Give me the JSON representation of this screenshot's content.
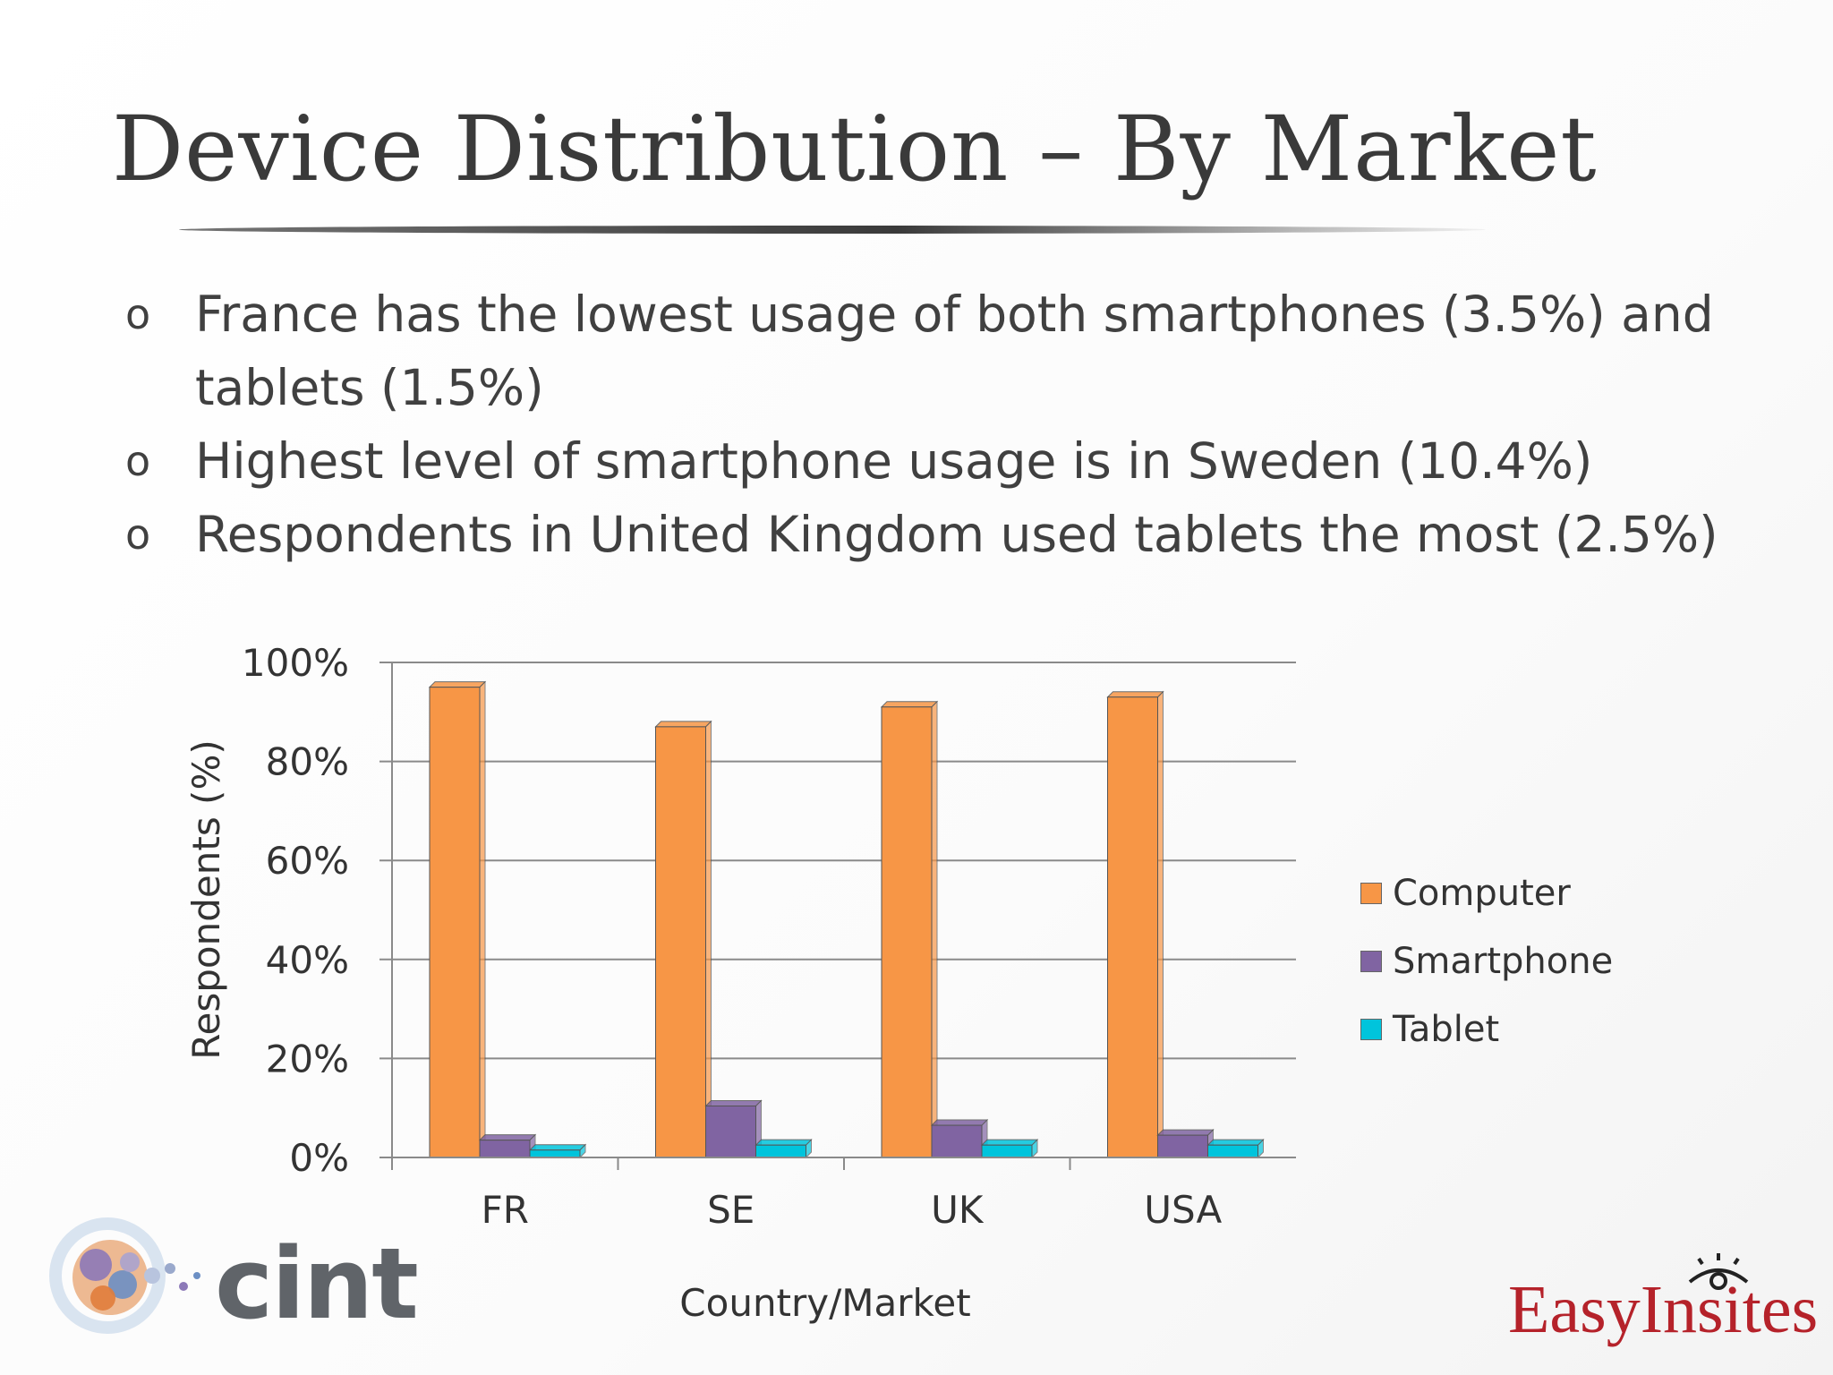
{
  "slide": {
    "title": "Device Distribution – By Market",
    "bullet_marker": "o",
    "bullets": [
      "France has the lowest usage of both smartphones (3.5%) and tablets (1.5%)",
      "Highest level of smartphone usage is in Sweden (10.4%)",
      "Respondents in United Kingdom used tablets the most (2.5%)"
    ]
  },
  "logos": {
    "left": "cint",
    "right": "EasyInsites"
  },
  "colors": {
    "computer": "#f79646",
    "smartphone": "#8064a2",
    "tablet": "#00c4dc",
    "title_rule": "#3a3a3a",
    "easyinsites_red": "#b5222a"
  },
  "chart_data": {
    "type": "bar",
    "categories": [
      "FR",
      "SE",
      "UK",
      "USA"
    ],
    "series": [
      {
        "name": "Computer",
        "values": [
          95,
          87,
          91,
          93
        ]
      },
      {
        "name": "Smartphone",
        "values": [
          3.5,
          10.4,
          6.5,
          4.5
        ]
      },
      {
        "name": "Tablet",
        "values": [
          1.5,
          2.5,
          2.5,
          2.5
        ]
      }
    ],
    "title": "",
    "xlabel": "Country/Market",
    "ylabel": "Respondents  (%)",
    "ylim": [
      0,
      100
    ],
    "yticks": [
      "0%",
      "20%",
      "40%",
      "60%",
      "80%",
      "100%"
    ],
    "grid": true,
    "legend": "right",
    "style": "3d-bar"
  }
}
